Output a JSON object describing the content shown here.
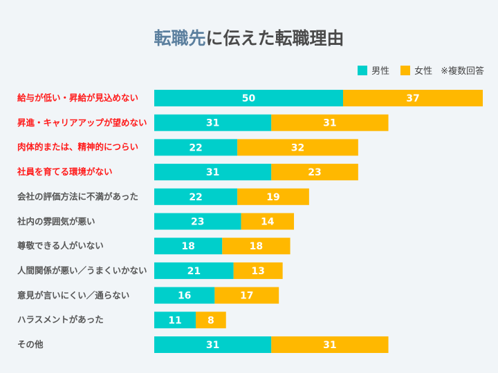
{
  "title_highlight": "転職先",
  "title_rest": "に伝えた転職理由",
  "legend_note": "※複数回答",
  "colors": {
    "male": "#00cfcb",
    "female": "#ffb800",
    "highlight_label": "#ff1a1a"
  },
  "chart_data": {
    "type": "bar",
    "stacked": true,
    "orientation": "horizontal",
    "title": "転職先に伝えた転職理由",
    "categories": [
      "給与が低い・昇給が見込めない",
      "昇進・キャリアアップが望めない",
      "肉体的または、精神的につらい",
      "社員を育てる環境がない",
      "会社の評価方法に不満があった",
      "社内の雰囲気が悪い",
      "尊敬できる人がいない",
      "人間関係が悪い／うまくいかない",
      "意見が言いにくい／通らない",
      "ハラスメントがあった",
      "その他"
    ],
    "highlighted_categories": [
      0,
      1,
      2,
      3
    ],
    "series": [
      {
        "name": "男性",
        "values": [
          50,
          31,
          22,
          31,
          22,
          23,
          18,
          21,
          16,
          11,
          31
        ]
      },
      {
        "name": "女性",
        "values": [
          37,
          31,
          32,
          23,
          19,
          14,
          18,
          13,
          17,
          8,
          31
        ]
      }
    ],
    "legend_position": "top-right",
    "grid": false
  }
}
